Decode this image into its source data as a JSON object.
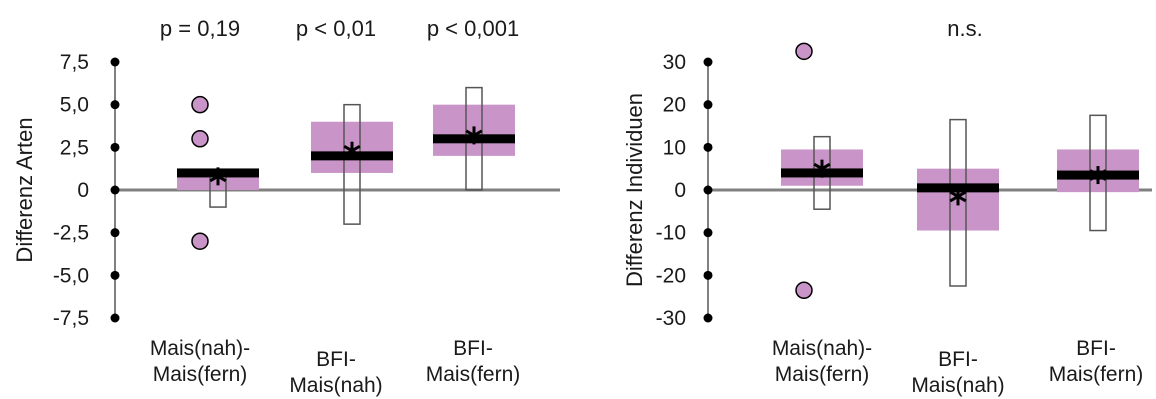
{
  "colors": {
    "iqr_box": "#c994c7",
    "range_box_stroke": "#555555",
    "median": "#000000",
    "axis": "#808080",
    "outlier_fill": "#c994c7"
  },
  "chart_data": [
    {
      "type": "box",
      "ylabel": "Differenz Arten",
      "ylim": [
        -7.5,
        7.5
      ],
      "yticks": [
        7.5,
        5.0,
        2.5,
        0,
        -2.5,
        -5.0,
        -7.5
      ],
      "ytick_labels": [
        "7,5",
        "5,0",
        "2,5",
        "0",
        "-2,5",
        "-5,0",
        "-7,5"
      ],
      "categories": [
        [
          "Mais(nah)-",
          "Mais(fern)"
        ],
        [
          "BFI-",
          "Mais(nah)"
        ],
        [
          "BFI-",
          "Mais(fern)"
        ]
      ],
      "significance": [
        "p = 0,19",
        "p < 0,01",
        "p < 0,001"
      ],
      "boxes": [
        {
          "min": -1.0,
          "max": 1.0,
          "q1": 0.0,
          "q3": 1.0,
          "median": 1.0,
          "mean": 0.8,
          "outliers": [
            5.0,
            3.0,
            -3.0
          ]
        },
        {
          "min": -2.0,
          "max": 5.0,
          "q1": 1.0,
          "q3": 4.0,
          "median": 2.0,
          "mean": 2.3,
          "outliers": []
        },
        {
          "min": 0.0,
          "max": 6.0,
          "q1": 2.0,
          "q3": 5.0,
          "median": 3.0,
          "mean": 3.2,
          "outliers": []
        }
      ]
    },
    {
      "type": "box",
      "ylabel": "Differenz Individuen",
      "ylim": [
        -30,
        30
      ],
      "yticks": [
        30,
        20,
        10,
        0,
        -10,
        -20,
        -30
      ],
      "ytick_labels": [
        "30",
        "20",
        "10",
        "0",
        "-10",
        "-20",
        "-30"
      ],
      "categories": [
        [
          "Mais(nah)-",
          "Mais(fern)"
        ],
        [
          "BFI-",
          "Mais(nah)"
        ],
        [
          "BFI-",
          "Mais(fern)"
        ]
      ],
      "significance": [
        "n.s."
      ],
      "boxes": [
        {
          "min": -4.5,
          "max": 12.5,
          "q1": 1.0,
          "q3": 9.5,
          "median": 4.0,
          "mean": 5.0,
          "outliers": [
            32.5,
            -23.5
          ]
        },
        {
          "min": -22.5,
          "max": 16.5,
          "q1": -9.5,
          "q3": 5.0,
          "median": 0.5,
          "mean": -1.5,
          "outliers": []
        },
        {
          "min": -9.5,
          "max": 17.5,
          "q1": -0.5,
          "q3": 9.5,
          "median": 3.5,
          "mean": 3.5,
          "outliers": []
        }
      ]
    }
  ]
}
